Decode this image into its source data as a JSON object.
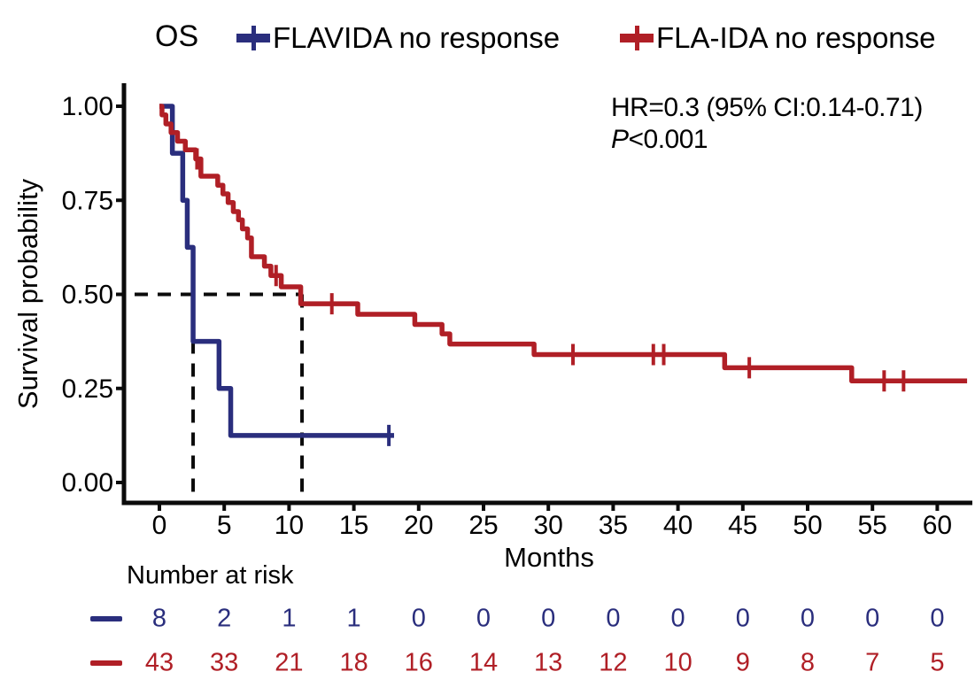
{
  "figure": {
    "legend": {
      "title": "OS",
      "items": [
        {
          "label": "FLAVIDA no response",
          "color": "#2A2E7D"
        },
        {
          "label": "FLA-IDA no response",
          "color": "#B01F26"
        }
      ]
    },
    "annotation": {
      "hr_line": "HR=0.3 (95% CI:0.14-0.71)",
      "p_label": "P",
      "p_value": "<0.001"
    }
  },
  "chart_data": {
    "type": "line",
    "subtype": "kaplan-meier-step",
    "title": "OS",
    "xlabel": "Months",
    "ylabel": "Survival probability",
    "xlim": [
      0,
      63
    ],
    "ylim": [
      0,
      1
    ],
    "xticks": [
      0,
      5,
      10,
      15,
      20,
      25,
      30,
      35,
      40,
      45,
      50,
      55,
      60
    ],
    "yticks": [
      0,
      0.25,
      0.5,
      0.75,
      1
    ],
    "ytick_labels": [
      "0.00",
      "0.25",
      "0.50",
      "0.75",
      "1.00"
    ],
    "grid": false,
    "legend_position": "top",
    "annotations": [
      "HR=0.3 (95% CI:0.14-0.71)",
      "P<0.001"
    ],
    "median_guides": {
      "survival_level": 0.5,
      "times": [
        2.6,
        11
      ]
    },
    "series": [
      {
        "name": "FLAVIDA no response",
        "color": "#2A2E7D",
        "start": [
          0,
          1.0
        ],
        "steps": [
          [
            1.0,
            0.875
          ],
          [
            1.8,
            0.75
          ],
          [
            2.15,
            0.625
          ],
          [
            2.6,
            0.375
          ],
          [
            4.6,
            0.25
          ],
          [
            5.5,
            0.125
          ]
        ],
        "end_time": 18.1,
        "censor_marks": [
          [
            17.7,
            0.125
          ]
        ],
        "median_months": 2.6
      },
      {
        "name": "FLA-IDA no response",
        "color": "#B01F26",
        "start": [
          0,
          1.0
        ],
        "steps": [
          [
            0.2,
            0.977
          ],
          [
            0.5,
            0.953
          ],
          [
            0.9,
            0.93
          ],
          [
            1.4,
            0.907
          ],
          [
            2.0,
            0.884
          ],
          [
            2.8,
            0.86
          ],
          [
            3.2,
            0.814
          ],
          [
            4.5,
            0.79
          ],
          [
            4.9,
            0.767
          ],
          [
            5.3,
            0.744
          ],
          [
            5.7,
            0.72
          ],
          [
            6.1,
            0.698
          ],
          [
            6.4,
            0.674
          ],
          [
            6.8,
            0.65
          ],
          [
            7.1,
            0.6
          ],
          [
            8.1,
            0.575
          ],
          [
            8.6,
            0.55
          ],
          [
            9.4,
            0.52
          ],
          [
            10.9,
            0.475
          ],
          [
            15.3,
            0.447
          ],
          [
            19.7,
            0.42
          ],
          [
            21.8,
            0.395
          ],
          [
            22.4,
            0.368
          ],
          [
            28.9,
            0.34
          ],
          [
            43.6,
            0.305
          ],
          [
            53.4,
            0.27
          ]
        ],
        "end_time": 62.3,
        "censor_marks": [
          [
            2.9,
            0.86
          ],
          [
            9.0,
            0.55
          ],
          [
            13.3,
            0.475
          ],
          [
            31.9,
            0.34
          ],
          [
            38.1,
            0.34
          ],
          [
            38.9,
            0.34
          ],
          [
            45.5,
            0.305
          ],
          [
            55.9,
            0.27
          ],
          [
            57.4,
            0.27
          ]
        ],
        "median_months": 11
      }
    ],
    "risk_table": {
      "label": "Number at risk",
      "times": [
        0,
        5,
        10,
        15,
        20,
        25,
        30,
        35,
        40,
        45,
        50,
        55,
        60
      ],
      "rows": [
        {
          "name": "FLAVIDA no response",
          "color": "#2A2E7D",
          "values": [
            8,
            2,
            1,
            1,
            0,
            0,
            0,
            0,
            0,
            0,
            0,
            0,
            0
          ]
        },
        {
          "name": "FLA-IDA no response",
          "color": "#B01F26",
          "values": [
            43,
            33,
            21,
            18,
            16,
            14,
            13,
            12,
            10,
            9,
            8,
            7,
            5
          ]
        }
      ]
    }
  }
}
